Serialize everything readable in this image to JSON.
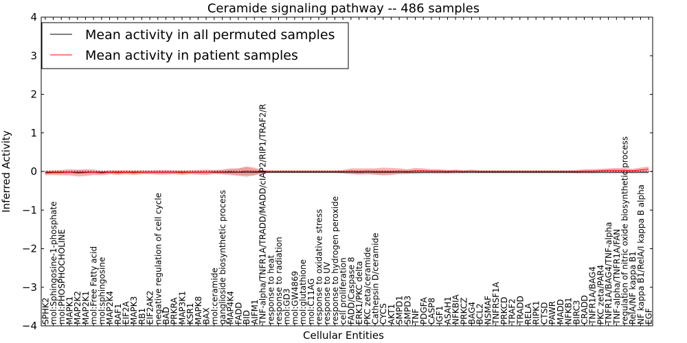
{
  "chart_data": {
    "type": "line",
    "title": "Ceramide signaling pathway -- 486 samples",
    "xlabel": "Cellular Entities",
    "ylabel": "Inferred Activity",
    "ylim": [
      -4,
      4
    ],
    "yticks": [
      -4,
      -3,
      -2,
      -1,
      0,
      1,
      2,
      3,
      4
    ],
    "ytick_labels": [
      "−4",
      "−3",
      "−2",
      "−1",
      "0",
      "1",
      "2",
      "3",
      "4"
    ],
    "grid": false,
    "legend_position": "upper-left",
    "categories": [
      "SPHK2",
      "mol:Sphingosine-1-phosphate",
      "mol:PHOSPHOCHOLINE",
      "MAPK1",
      "MAP2K2",
      "MAP2K1",
      "mol:Free Fatty acid",
      "mol:sphingosine",
      "MAP2K4",
      "RAF1",
      "EIF2A",
      "MAPK3",
      "RB1",
      "EIF2AK2",
      "negative regulation of cell cycle",
      "BAD",
      "PRKRA",
      "MAP3K1",
      "KSR1",
      "MAPK8",
      "BAX",
      "mol:ceramide",
      "ganglioside biosynthetic process",
      "MAP4K4",
      "FADD",
      "BID",
      "AIFM1",
      "TNF-alpha/TNFR1A/TRADD/MADD/cIAP2/RIP1/TRAF2/R",
      "response to heat",
      "response to radiation",
      "mol:GD3",
      "mol:GW4869",
      "mol:glutathione",
      "mol:C11AG",
      "response to oxidative stress",
      "response to UV",
      "response to hydrogen peroxide",
      "cell proliferation",
      "FADD/Caspase 8",
      "ERK1/PKC delta",
      "PKC zeta/ceramide",
      "Cathepsin D/ceramide",
      "CYCS",
      "AKT1",
      "SMPD1",
      "SMPD3",
      "TNF",
      "PDGFA",
      "CASP8",
      "IGF1",
      "ASAH1",
      "NFKBIA",
      "PRKCZ",
      "BAG4",
      "BCL2",
      "NSMAF",
      "TNFRSF1A",
      "PRKCD",
      "TRAF2",
      "TRADD",
      "RELA",
      "RIPK1",
      "CTSD",
      "PAWR",
      "MADD",
      "NFKB1",
      "BIRC3",
      "CRADD",
      "TNFR1A/BAG4",
      "PKC zeta/PAR4",
      "TNFR1A/BAG4/TNF-alpha",
      "TNF-alpha/TNFR1A/FAN",
      "regulation of nitric oxide biosynthetic process",
      "RelA/NF kappa B1",
      "NF kappa B1/RelA/I kappa B alpha",
      "EGF"
    ],
    "series": [
      {
        "name": "Mean activity in all permuted samples",
        "color": "#000000",
        "values": [
          -0.02,
          -0.02,
          -0.02,
          -0.02,
          -0.02,
          -0.02,
          -0.02,
          -0.02,
          -0.02,
          -0.02,
          -0.02,
          -0.02,
          -0.02,
          -0.02,
          -0.02,
          -0.02,
          -0.02,
          -0.02,
          -0.02,
          -0.02,
          -0.02,
          -0.02,
          -0.02,
          -0.02,
          -0.02,
          -0.02,
          -0.02,
          -0.02,
          -0.02,
          -0.02,
          -0.02,
          -0.02,
          -0.02,
          -0.02,
          -0.02,
          -0.02,
          -0.02,
          -0.02,
          -0.02,
          -0.02,
          -0.02,
          -0.02,
          -0.02,
          -0.02,
          -0.02,
          -0.02,
          -0.02,
          -0.02,
          -0.02,
          -0.02,
          -0.02,
          -0.02,
          -0.02,
          -0.02,
          -0.02,
          -0.02,
          -0.02,
          -0.02,
          -0.02,
          -0.02,
          -0.02,
          -0.02,
          -0.02,
          -0.02,
          -0.02,
          -0.02,
          -0.02,
          -0.02,
          -0.02,
          -0.02,
          -0.02,
          -0.02,
          -0.02,
          -0.02,
          -0.02,
          -0.02
        ]
      },
      {
        "name": "Mean activity in patient samples",
        "color": "#ff0000",
        "values": [
          -0.04,
          -0.03,
          -0.03,
          -0.02,
          -0.04,
          -0.03,
          -0.02,
          -0.04,
          -0.02,
          -0.03,
          -0.02,
          -0.03,
          -0.02,
          -0.02,
          -0.02,
          -0.02,
          -0.02,
          -0.03,
          -0.02,
          -0.02,
          -0.02,
          -0.01,
          -0.01,
          0.0,
          -0.01,
          0.01,
          0.0,
          0.0,
          0.0,
          0.0,
          0.0,
          0.0,
          0.0,
          0.0,
          0.0,
          0.0,
          0.0,
          0.0,
          0.01,
          0.0,
          0.01,
          0.0,
          0.0,
          0.0,
          0.01,
          0.0,
          0.02,
          0.02,
          0.01,
          0.01,
          0.0,
          0.01,
          0.0,
          0.01,
          0.0,
          0.0,
          0.0,
          0.0,
          0.0,
          0.0,
          0.0,
          0.0,
          0.0,
          0.0,
          0.0,
          0.0,
          0.0,
          0.01,
          0.01,
          0.02,
          0.03,
          0.03,
          0.03,
          0.02,
          0.04,
          0.06
        ]
      }
    ],
    "patient_band_halfwidth": [
      0.06,
      0.06,
      0.07,
      0.08,
      0.09,
      0.09,
      0.07,
      0.06,
      0.05,
      0.06,
      0.05,
      0.06,
      0.05,
      0.05,
      0.06,
      0.06,
      0.05,
      0.06,
      0.05,
      0.06,
      0.07,
      0.05,
      0.06,
      0.08,
      0.09,
      0.12,
      0.1,
      0.04,
      0.03,
      0.03,
      0.03,
      0.03,
      0.03,
      0.03,
      0.03,
      0.03,
      0.03,
      0.04,
      0.07,
      0.08,
      0.07,
      0.08,
      0.1,
      0.09,
      0.07,
      0.06,
      0.07,
      0.06,
      0.05,
      0.05,
      0.04,
      0.04,
      0.03,
      0.04,
      0.03,
      0.03,
      0.03,
      0.03,
      0.03,
      0.03,
      0.03,
      0.03,
      0.03,
      0.03,
      0.03,
      0.03,
      0.04,
      0.05,
      0.05,
      0.05,
      0.05,
      0.06,
      0.06,
      0.05,
      0.06,
      0.07
    ],
    "permuted_band_halfwidth": [
      0.04,
      0.04,
      0.04,
      0.04,
      0.05,
      0.05,
      0.04,
      0.04,
      0.04,
      0.04,
      0.04,
      0.04,
      0.04,
      0.04,
      0.04,
      0.04,
      0.04,
      0.04,
      0.04,
      0.04,
      0.04,
      0.05,
      0.06,
      0.08,
      0.1,
      0.13,
      0.08,
      0.04,
      0.03,
      0.03,
      0.03,
      0.03,
      0.03,
      0.03,
      0.03,
      0.03,
      0.03,
      0.04,
      0.05,
      0.05,
      0.06,
      0.06,
      0.06,
      0.05,
      0.05,
      0.05,
      0.05,
      0.05,
      0.05,
      0.05,
      0.05,
      0.05,
      0.04,
      0.04,
      0.04,
      0.04,
      0.04,
      0.04,
      0.04,
      0.04,
      0.04,
      0.04,
      0.04,
      0.04,
      0.04,
      0.04,
      0.04,
      0.04,
      0.04,
      0.04,
      0.04,
      0.04,
      0.04,
      0.04,
      0.04,
      0.04
    ]
  }
}
